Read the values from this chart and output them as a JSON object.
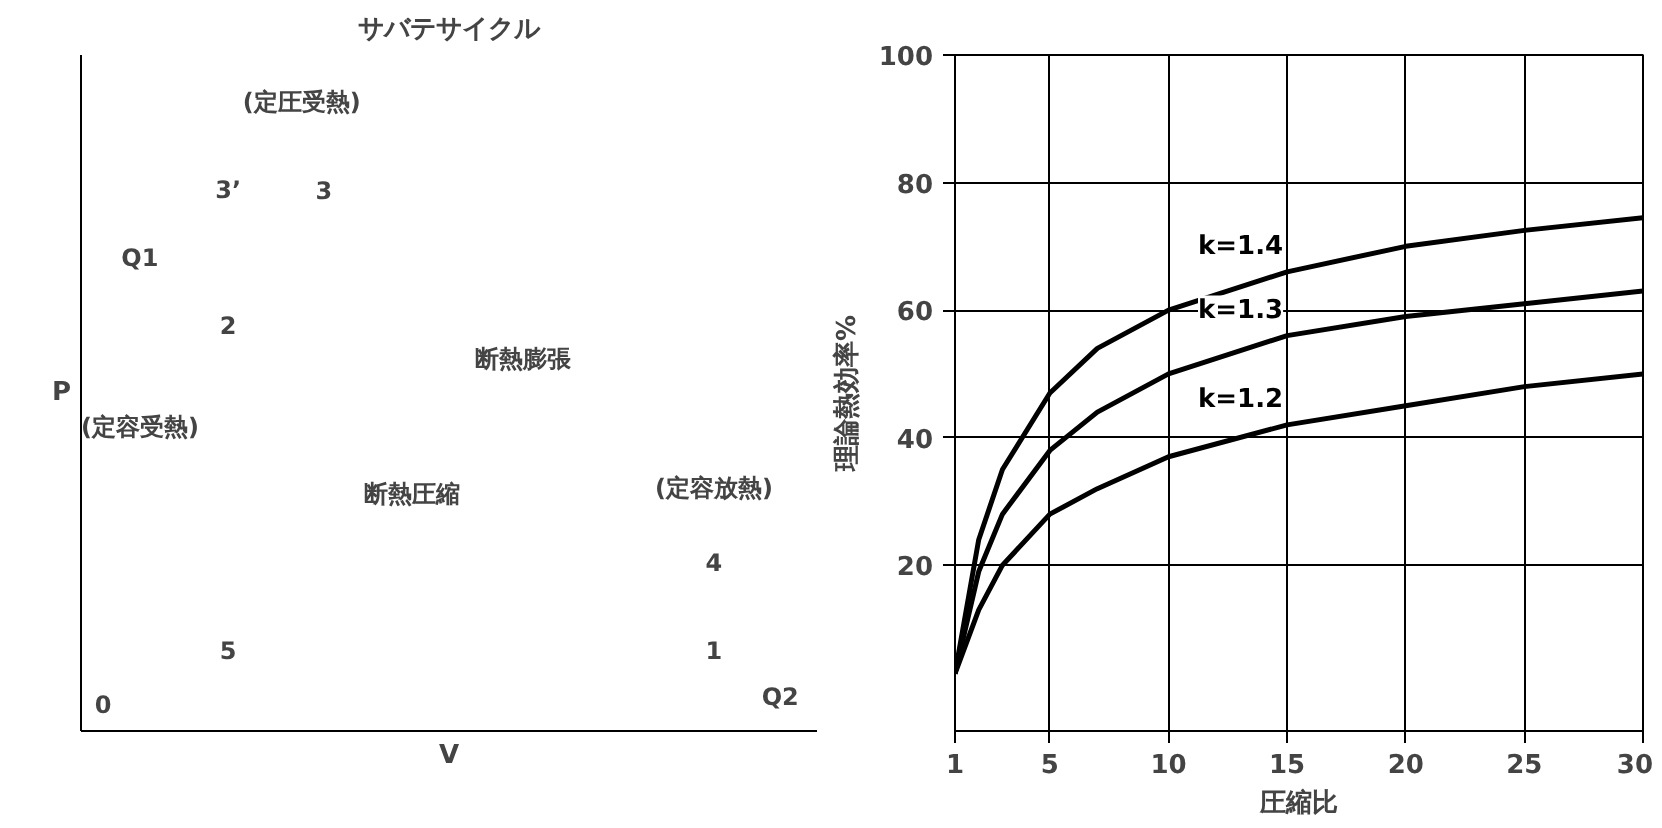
{
  "chart_data": [
    {
      "type": "other",
      "title": "サバテサイクル",
      "xlabel": "V",
      "ylabel": "P",
      "annotations": [
        "0",
        "1",
        "2",
        "3’",
        "3",
        "4",
        "5",
        "Q1",
        "Q2",
        "(定圧受熱)",
        "(定容受熱)",
        "(定容放熱)",
        "断熱膨張",
        "断熱圧縮"
      ]
    },
    {
      "type": "line",
      "xlabel": "圧縮比",
      "ylabel": "理論熱効率%",
      "xlim": [
        1,
        30
      ],
      "xticks": [
        1,
        5,
        10,
        15,
        20,
        25,
        30
      ],
      "ylim": [
        -6,
        100
      ],
      "yticks": [
        20,
        40,
        60,
        80,
        100
      ],
      "grid": true,
      "marker": "none",
      "x": [
        1,
        2,
        3,
        5,
        7,
        10,
        15,
        20,
        25,
        30
      ],
      "series": [
        {
          "name": "k=1.4",
          "color": "#000000",
          "values": [
            3,
            24,
            35,
            47,
            54,
            60,
            66,
            70,
            72.5,
            74.5
          ]
        },
        {
          "name": "k=1.3",
          "color": "#000000",
          "values": [
            3,
            19,
            28,
            38,
            44,
            50,
            56,
            59,
            61,
            63
          ]
        },
        {
          "name": "k=1.2",
          "color": "#000000",
          "values": [
            3,
            13,
            20,
            28,
            32,
            37,
            42,
            45,
            48,
            50
          ]
        }
      ]
    }
  ]
}
